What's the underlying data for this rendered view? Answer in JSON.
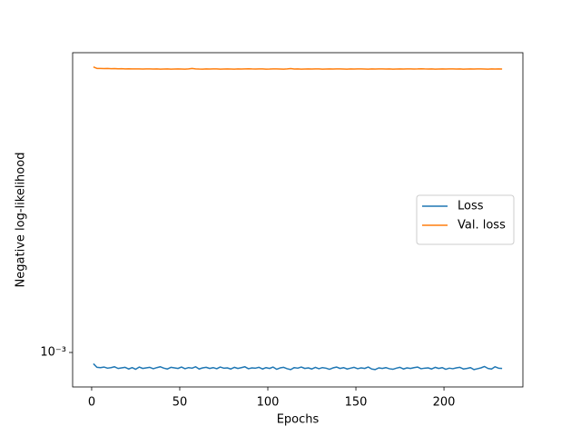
{
  "chart_data": {
    "type": "line",
    "xlabel": "Epochs",
    "ylabel": "Negative log-likelihood",
    "x": [
      1,
      3,
      5,
      7,
      9,
      11,
      13,
      15,
      17,
      19,
      21,
      23,
      25,
      27,
      29,
      31,
      33,
      35,
      37,
      39,
      41,
      43,
      45,
      47,
      49,
      51,
      53,
      55,
      57,
      59,
      61,
      63,
      65,
      67,
      69,
      71,
      73,
      75,
      77,
      79,
      81,
      83,
      85,
      87,
      89,
      91,
      93,
      95,
      97,
      99,
      101,
      103,
      105,
      107,
      109,
      111,
      113,
      115,
      117,
      119,
      121,
      123,
      125,
      127,
      129,
      131,
      133,
      135,
      137,
      139,
      141,
      143,
      145,
      147,
      149,
      151,
      153,
      155,
      157,
      159,
      161,
      163,
      165,
      167,
      169,
      171,
      173,
      175,
      177,
      179,
      181,
      183,
      185,
      187,
      189,
      191,
      193,
      195,
      197,
      199,
      201,
      203,
      205,
      207,
      209,
      211,
      213,
      215,
      217,
      219,
      221,
      223,
      225,
      227,
      229,
      231,
      233
    ],
    "series": [
      {
        "name": "Loss",
        "color": "#1f77b4",
        "values": [
          0.000958,
          0.000945,
          0.000944,
          0.000946,
          0.000942,
          0.000944,
          0.000947,
          0.000941,
          0.000943,
          0.000945,
          0.000939,
          0.000944,
          0.000938,
          0.000946,
          0.000941,
          0.000943,
          0.000945,
          0.00094,
          0.000944,
          0.000947,
          0.000942,
          0.000939,
          0.000945,
          0.000943,
          0.000941,
          0.000946,
          0.00094,
          0.000944,
          0.000942,
          0.000947,
          0.000939,
          0.000943,
          0.000945,
          0.000941,
          0.000944,
          0.00094,
          0.000946,
          0.000942,
          0.000943,
          0.000939,
          0.000945,
          0.000941,
          0.000944,
          0.000947,
          0.00094,
          0.000943,
          0.000942,
          0.000945,
          0.000939,
          0.000944,
          0.000941,
          0.000946,
          0.000938,
          0.000943,
          0.000945,
          0.00094,
          0.000937,
          0.000944,
          0.000942,
          0.000946,
          0.000941,
          0.000943,
          0.000939,
          0.000945,
          0.00094,
          0.000944,
          0.000942,
          0.000938,
          0.000943,
          0.000946,
          0.000941,
          0.000944,
          0.000939,
          0.000942,
          0.000945,
          0.00094,
          0.000943,
          0.000941,
          0.000946,
          0.000939,
          0.000937,
          0.000943,
          0.000941,
          0.000944,
          0.00094,
          0.000938,
          0.000942,
          0.000945,
          0.000939,
          0.000943,
          0.000941,
          0.000944,
          0.000946,
          0.00094,
          0.000942,
          0.000943,
          0.000939,
          0.000945,
          0.000941,
          0.000944,
          0.000938,
          0.000942,
          0.00094,
          0.000943,
          0.000945,
          0.000939,
          0.000941,
          0.000944,
          0.000937,
          0.00094,
          0.000943,
          0.000948,
          0.000941,
          0.000939,
          0.000947,
          0.000942,
          0.000941
        ]
      },
      {
        "name": "Val. loss",
        "color": "#ff7f0e",
        "values": [
          0.002965,
          0.002948,
          0.002947,
          0.002946,
          0.002947,
          0.002945,
          0.002946,
          0.002944,
          0.002945,
          0.002943,
          0.002944,
          0.002942,
          0.002943,
          0.002942,
          0.002941,
          0.002943,
          0.002942,
          0.002941,
          0.002942,
          0.00294,
          0.002941,
          0.002942,
          0.00294,
          0.002941,
          0.002942,
          0.002941,
          0.00294,
          0.002942,
          0.002948,
          0.002943,
          0.002941,
          0.00294,
          0.002942,
          0.002941,
          0.002943,
          0.002942,
          0.00294,
          0.002941,
          0.002942,
          0.002941,
          0.00294,
          0.002942,
          0.002941,
          0.002943,
          0.002944,
          0.002942,
          0.002941,
          0.002943,
          0.002942,
          0.00294,
          0.002941,
          0.002943,
          0.002942,
          0.002941,
          0.00294,
          0.002942,
          0.002946,
          0.002941,
          0.002942,
          0.00294,
          0.002941,
          0.002942,
          0.002941,
          0.002943,
          0.002942,
          0.00294,
          0.002941,
          0.002942,
          0.002941,
          0.002943,
          0.002942,
          0.002941,
          0.00294,
          0.002942,
          0.002941,
          0.002943,
          0.002942,
          0.002941,
          0.00294,
          0.002942,
          0.002941,
          0.002942,
          0.002943,
          0.002941,
          0.002942,
          0.00294,
          0.002941,
          0.002942,
          0.002941,
          0.002943,
          0.002942,
          0.002941,
          0.002942,
          0.002944,
          0.002942,
          0.002941,
          0.002942,
          0.00294,
          0.002941,
          0.002942,
          0.002941,
          0.002943,
          0.002942,
          0.002941,
          0.002942,
          0.00294,
          0.002941,
          0.002942,
          0.002941,
          0.002943,
          0.002942,
          0.002941,
          0.00294,
          0.002942,
          0.002941,
          0.002942,
          0.002941
        ]
      }
    ],
    "xlim": [
      -10.8,
      244.8
    ],
    "xticks": [
      0,
      50,
      100,
      150,
      200
    ],
    "ylim": [
      0.000877,
      0.00313
    ],
    "yticks": [
      {
        "value": 0.001,
        "label": "10⁻³"
      }
    ],
    "yscale": "log",
    "grid": false,
    "legend": "center right"
  }
}
